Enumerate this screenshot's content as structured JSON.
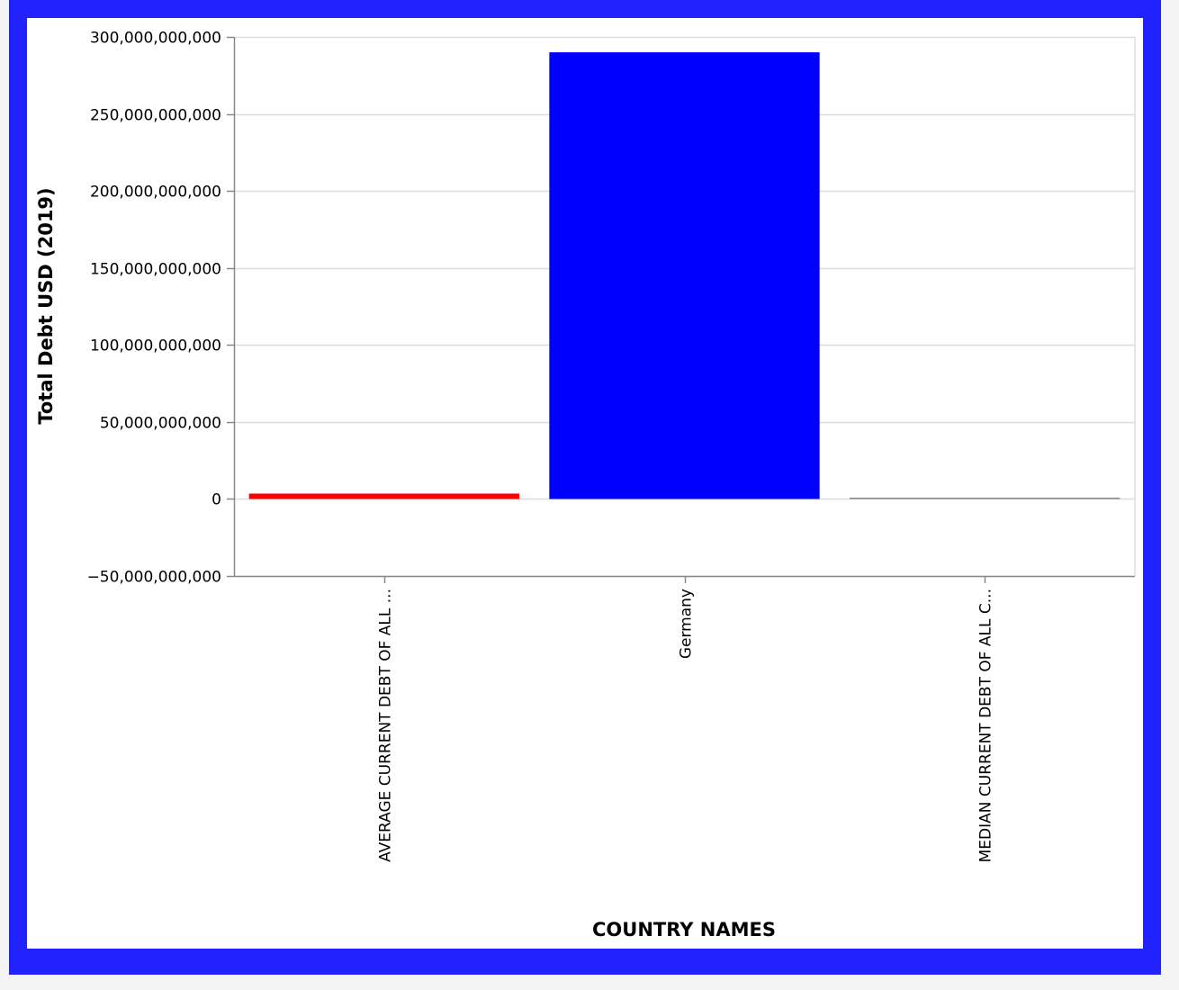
{
  "chart_data": {
    "type": "bar",
    "categories": [
      "AVERAGE CURRENT DEBT OF ALL ...",
      "Germany",
      "MEDIAN CURRENT DEBT OF ALL C..."
    ],
    "values": [
      3500000000,
      290000000000,
      150000000
    ],
    "bar_colors": [
      "#ff0000",
      "#0000ff",
      "#888888"
    ],
    "xlabel": "COUNTRY NAMES",
    "ylabel": "Total Debt USD (2019)",
    "ylim": [
      -50000000000,
      300000000000
    ],
    "yticks": [
      {
        "value": 300000000000,
        "label": "300,000,000,000"
      },
      {
        "value": 250000000000,
        "label": "250,000,000,000"
      },
      {
        "value": 200000000000,
        "label": "200,000,000,000"
      },
      {
        "value": 150000000000,
        "label": "150,000,000,000"
      },
      {
        "value": 100000000000,
        "label": "100,000,000,000"
      },
      {
        "value": 50000000000,
        "label": "50,000,000,000"
      },
      {
        "value": 0,
        "label": "0"
      },
      {
        "value": -50000000000,
        "label": "−50,000,000,000"
      }
    ],
    "grid": true,
    "legend": "none",
    "frame_color": "#2222ff"
  }
}
